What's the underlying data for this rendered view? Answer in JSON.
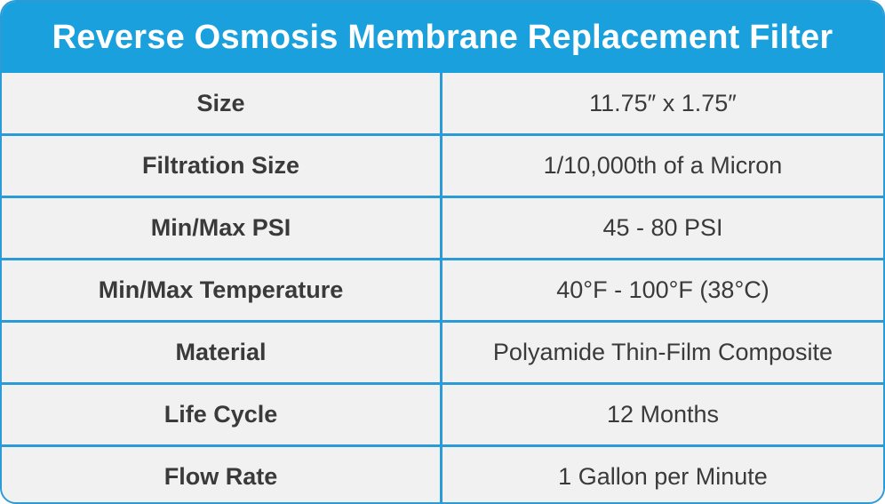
{
  "header": {
    "title": "Reverse Osmosis Membrane Replacement Filter"
  },
  "specs": [
    {
      "label": "Size",
      "value": "11.75″ x 1.75″"
    },
    {
      "label": "Filtration Size",
      "value": "1/10,000th of a Micron"
    },
    {
      "label": "Min/Max PSI",
      "value": "45 - 80 PSI"
    },
    {
      "label": "Min/Max Temperature",
      "value": "40°F - 100°F (38°C)"
    },
    {
      "label": "Material",
      "value": "Polyamide Thin-Film Composite"
    },
    {
      "label": "Life Cycle",
      "value": "12 Months"
    },
    {
      "label": "Flow Rate",
      "value": "1 Gallon per Minute"
    }
  ],
  "colors": {
    "header_bg": "#1aa0dc",
    "border": "#2b9bd8",
    "row_bg": "#f1f1f1",
    "text": "#3a3a3a"
  }
}
